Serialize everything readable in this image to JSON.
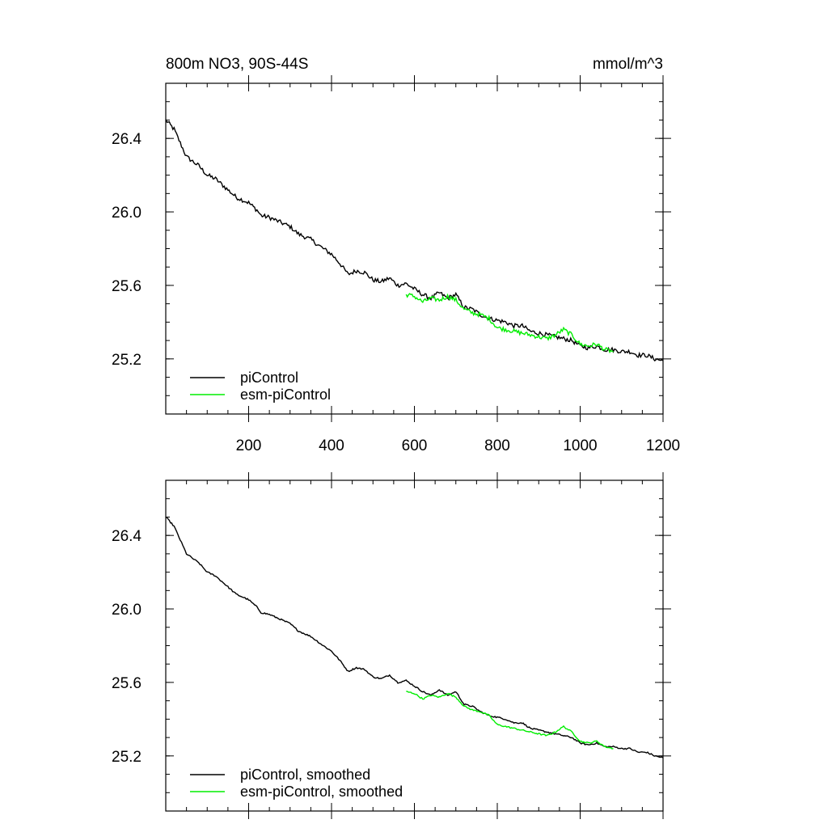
{
  "figure": {
    "title_left": "800m NO3, 90S-44S",
    "title_right": "mmol/m^3"
  },
  "colors": {
    "picontrol": "#000000",
    "esm_picontrol": "#00ee00",
    "axis": "#000000"
  },
  "chart_data": [
    {
      "type": "line",
      "title": "800m NO3, 90S-44S",
      "units": "mmol/m^3",
      "xlim": [
        0,
        1200
      ],
      "ylim": [
        24.9,
        26.7
      ],
      "xticks": [
        200,
        400,
        600,
        800,
        1000,
        1200
      ],
      "xtick_labels": [
        "200",
        "400",
        "600",
        "800",
        "1000",
        "1200"
      ],
      "yticks": [
        25.2,
        25.6,
        26.0,
        26.4
      ],
      "ytick_labels": [
        "25.2",
        "25.6",
        "26.0",
        "26.4"
      ],
      "legend_position": "bottom-left",
      "series": [
        {
          "name": "piControl",
          "color": "#000000",
          "x": [
            0,
            20,
            50,
            80,
            100,
            120,
            150,
            170,
            200,
            220,
            230,
            250,
            270,
            300,
            320,
            350,
            380,
            400,
            420,
            440,
            460,
            480,
            500,
            520,
            540,
            560,
            580,
            600,
            620,
            640,
            660,
            680,
            700,
            720,
            740,
            760,
            780,
            800,
            820,
            840,
            860,
            880,
            900,
            920,
            940,
            960,
            980,
            1000,
            1020,
            1040,
            1060,
            1080,
            1100,
            1120,
            1140,
            1160,
            1180,
            1200
          ],
          "y": [
            26.5,
            26.45,
            26.3,
            26.25,
            26.2,
            26.18,
            26.12,
            26.08,
            26.05,
            26.01,
            25.98,
            25.97,
            25.95,
            25.92,
            25.88,
            25.85,
            25.8,
            25.77,
            25.72,
            25.66,
            25.68,
            25.67,
            25.63,
            25.62,
            25.64,
            25.6,
            25.61,
            25.58,
            25.55,
            25.53,
            25.56,
            25.53,
            25.55,
            25.48,
            25.47,
            25.44,
            25.42,
            25.41,
            25.4,
            25.38,
            25.38,
            25.35,
            25.34,
            25.33,
            25.32,
            25.31,
            25.3,
            25.27,
            25.26,
            25.27,
            25.25,
            25.25,
            25.24,
            25.24,
            25.22,
            25.22,
            25.2,
            25.19
          ],
          "jitter": 0.012
        },
        {
          "name": "esm-piControl",
          "color": "#00ee00",
          "x": [
            580,
            600,
            620,
            640,
            660,
            680,
            700,
            720,
            740,
            760,
            780,
            800,
            820,
            840,
            860,
            880,
            900,
            920,
            940,
            960,
            980,
            1000,
            1020,
            1040,
            1060,
            1080
          ],
          "y": [
            25.55,
            25.54,
            25.51,
            25.53,
            25.52,
            25.54,
            25.52,
            25.47,
            25.45,
            25.44,
            25.42,
            25.37,
            25.36,
            25.35,
            25.34,
            25.33,
            25.32,
            25.31,
            25.33,
            25.36,
            25.33,
            25.28,
            25.27,
            25.28,
            25.25,
            25.24
          ],
          "jitter": 0.012
        }
      ],
      "legend": [
        "piControl",
        "esm-piControl"
      ]
    },
    {
      "type": "line",
      "xlim": [
        0,
        1200
      ],
      "ylim": [
        24.9,
        26.7
      ],
      "xticks": [
        200,
        400,
        600,
        800,
        1000,
        1200
      ],
      "xtick_labels": [],
      "yticks": [
        25.2,
        25.6,
        26.0,
        26.4
      ],
      "ytick_labels": [
        "25.2",
        "25.6",
        "26.0",
        "26.4"
      ],
      "legend_position": "bottom-left",
      "series": [
        {
          "name": "piControl, smoothed",
          "color": "#000000",
          "x": [
            0,
            20,
            50,
            80,
            100,
            120,
            150,
            170,
            200,
            220,
            230,
            250,
            270,
            300,
            320,
            350,
            380,
            400,
            420,
            440,
            460,
            480,
            500,
            520,
            540,
            560,
            580,
            600,
            620,
            640,
            660,
            680,
            700,
            720,
            740,
            760,
            780,
            800,
            820,
            840,
            860,
            880,
            900,
            920,
            940,
            960,
            980,
            1000,
            1020,
            1040,
            1060,
            1080,
            1100,
            1120,
            1140,
            1160,
            1180,
            1200
          ],
          "y": [
            26.5,
            26.45,
            26.3,
            26.25,
            26.2,
            26.18,
            26.12,
            26.08,
            26.05,
            26.01,
            25.98,
            25.97,
            25.95,
            25.92,
            25.88,
            25.85,
            25.8,
            25.77,
            25.72,
            25.66,
            25.68,
            25.67,
            25.63,
            25.62,
            25.64,
            25.6,
            25.61,
            25.58,
            25.55,
            25.53,
            25.56,
            25.53,
            25.55,
            25.48,
            25.47,
            25.44,
            25.42,
            25.41,
            25.4,
            25.38,
            25.38,
            25.35,
            25.34,
            25.33,
            25.32,
            25.31,
            25.3,
            25.27,
            25.26,
            25.27,
            25.25,
            25.25,
            25.24,
            25.24,
            25.22,
            25.22,
            25.2,
            25.19
          ],
          "jitter": 0.004
        },
        {
          "name": "esm-piControl, smoothed",
          "color": "#00ee00",
          "x": [
            580,
            600,
            620,
            640,
            660,
            680,
            700,
            720,
            740,
            760,
            780,
            800,
            820,
            840,
            860,
            880,
            900,
            920,
            940,
            960,
            980,
            1000,
            1020,
            1040,
            1060,
            1080
          ],
          "y": [
            25.55,
            25.54,
            25.51,
            25.53,
            25.52,
            25.54,
            25.52,
            25.47,
            25.45,
            25.44,
            25.42,
            25.37,
            25.36,
            25.35,
            25.34,
            25.33,
            25.32,
            25.31,
            25.33,
            25.36,
            25.33,
            25.28,
            25.27,
            25.28,
            25.25,
            25.24
          ],
          "jitter": 0.004
        }
      ],
      "legend": [
        "piControl, smoothed",
        "esm-piControl, smoothed"
      ]
    }
  ]
}
